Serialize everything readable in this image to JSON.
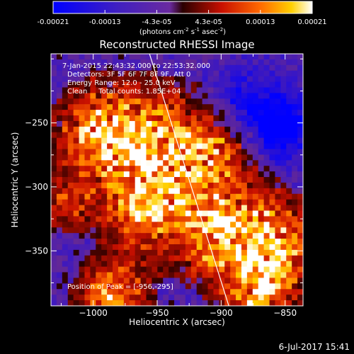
{
  "colorbar": {
    "ticks": [
      "-0.00021",
      "-0.00013",
      "-4.3e-05",
      "4.3e-05",
      "0.00013",
      "0.00021"
    ],
    "unit_label": "(photons cm",
    "unit_sup1": "-2",
    "unit_mid": " s",
    "unit_sup2": "-1",
    "unit_end": " asec",
    "unit_sup3": "-2",
    "unit_close": ")"
  },
  "chart_data": {
    "type": "heatmap",
    "title": "Reconstructed RHESSI Image",
    "xlabel": "Heliocentric X (arcsec)",
    "ylabel": "Heliocentric Y (arcsec)",
    "xlim": [
      -1033,
      -836
    ],
    "ylim": [
      -393,
      -196
    ],
    "x_ticks": [
      -1000,
      -950,
      -900,
      -850
    ],
    "x_tick_labels": [
      "−1000",
      "−950",
      "−900",
      "−850"
    ],
    "y_ticks": [
      -250,
      -300,
      -350
    ],
    "y_tick_labels": [
      "−250",
      "−300",
      "−350"
    ],
    "color_range": [
      -0.00021,
      0.00021
    ],
    "colormap": "blue-purple-red-yellow-white",
    "limb_line": {
      "x": [
        -956,
        -894
      ],
      "y": [
        -196,
        -393
      ]
    },
    "peak": {
      "x": -956,
      "y": -295
    },
    "hot_regions": [
      {
        "x": -950,
        "y": -275,
        "r": 32,
        "v": 0.00021
      },
      {
        "x": -995,
        "y": -255,
        "r": 22,
        "v": 0.00016
      },
      {
        "x": -900,
        "y": -270,
        "r": 18,
        "v": 0.00012
      },
      {
        "x": -960,
        "y": -320,
        "r": 20,
        "v": 0.00013
      },
      {
        "x": -900,
        "y": -335,
        "r": 26,
        "v": 0.00017
      },
      {
        "x": -860,
        "y": -345,
        "r": 24,
        "v": 0.00018
      },
      {
        "x": -870,
        "y": -385,
        "r": 18,
        "v": 0.00015
      },
      {
        "x": -985,
        "y": -385,
        "r": 18,
        "v": 0.00017
      },
      {
        "x": -1020,
        "y": -310,
        "r": 16,
        "v": 0.0001
      }
    ],
    "cold_regions": [
      {
        "x": -875,
        "y": -240,
        "r": 22,
        "v": -0.00016
      },
      {
        "x": -850,
        "y": -255,
        "r": 16,
        "v": -0.00018
      }
    ],
    "annotations": [
      "7-Jan-2015 22:43:32.000 to 22:53:32.000",
      "Detectors: 3F 5F 6F 7F 8F 9F, Att 0",
      "Energy Range: 12.0 - 25.0 keV",
      "Clean     Total counts: 1.85E+04"
    ],
    "peak_label": "Position of Peak = [-956,-295]"
  },
  "timestamp": "6-Jul-2017 15:41"
}
